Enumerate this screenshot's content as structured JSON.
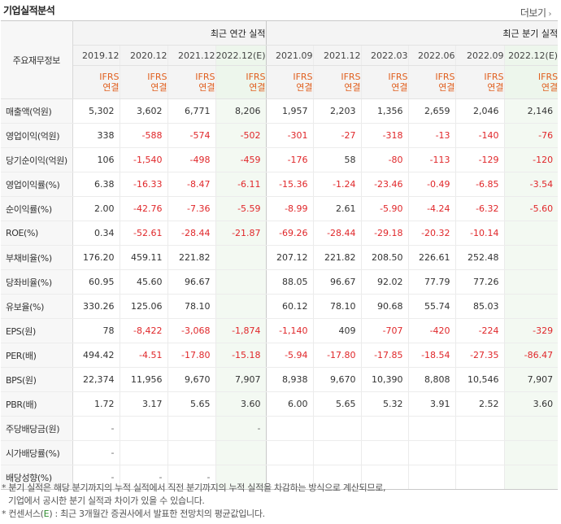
{
  "title": "기업실적분석",
  "more_label": "더보기",
  "header": {
    "label": "주요재무정보",
    "annual_group": "최근 연간 실적",
    "quarter_group": "최근 분기 실적",
    "annual_periods": [
      "2019.12",
      "2020.12",
      "2021.12",
      "2022.12(E)"
    ],
    "quarter_periods": [
      "2021.09",
      "2021.12",
      "2022.03",
      "2022.06",
      "2022.09",
      "2022.12(E)"
    ],
    "basis_top": "IFRS",
    "basis_bottom": "연결"
  },
  "rows": [
    {
      "label": "매출액(억원)",
      "values": [
        "5,302",
        "3,602",
        "6,771",
        "8,206",
        "1,957",
        "2,203",
        "1,356",
        "2,659",
        "2,046",
        "2,146"
      ]
    },
    {
      "label": "영업이익(억원)",
      "values": [
        "338",
        "-588",
        "-574",
        "-502",
        "-301",
        "-27",
        "-318",
        "-13",
        "-140",
        "-76"
      ]
    },
    {
      "label": "당기순이익(억원)",
      "values": [
        "106",
        "-1,540",
        "-498",
        "-459",
        "-176",
        "58",
        "-80",
        "-113",
        "-129",
        "-120"
      ]
    },
    {
      "label": "영업이익률(%)",
      "values": [
        "6.38",
        "-16.33",
        "-8.47",
        "-6.11",
        "-15.36",
        "-1.24",
        "-23.46",
        "-0.49",
        "-6.85",
        "-3.54"
      ]
    },
    {
      "label": "순이익률(%)",
      "values": [
        "2.00",
        "-42.76",
        "-7.36",
        "-5.59",
        "-8.99",
        "2.61",
        "-5.90",
        "-4.24",
        "-6.32",
        "-5.60"
      ]
    },
    {
      "label": "ROE(%)",
      "values": [
        "0.34",
        "-52.61",
        "-28.44",
        "-21.87",
        "-69.26",
        "-28.44",
        "-29.18",
        "-20.32",
        "-10.14",
        ""
      ]
    },
    {
      "label": "부채비율(%)",
      "values": [
        "176.20",
        "459.11",
        "221.82",
        "",
        "207.12",
        "221.82",
        "208.50",
        "226.61",
        "252.48",
        ""
      ]
    },
    {
      "label": "당좌비율(%)",
      "values": [
        "60.95",
        "45.60",
        "96.67",
        "",
        "88.05",
        "96.67",
        "92.02",
        "77.79",
        "77.26",
        ""
      ]
    },
    {
      "label": "유보율(%)",
      "values": [
        "330.26",
        "125.06",
        "78.10",
        "",
        "60.12",
        "78.10",
        "90.68",
        "55.74",
        "85.03",
        ""
      ]
    },
    {
      "label": "EPS(원)",
      "values": [
        "78",
        "-8,422",
        "-3,068",
        "-1,874",
        "-1,140",
        "409",
        "-707",
        "-420",
        "-224",
        "-329"
      ]
    },
    {
      "label": "PER(배)",
      "values": [
        "494.42",
        "-4.51",
        "-17.80",
        "-15.18",
        "-5.94",
        "-17.80",
        "-17.85",
        "-18.54",
        "-27.35",
        "-86.47"
      ]
    },
    {
      "label": "BPS(원)",
      "values": [
        "22,374",
        "11,956",
        "9,670",
        "7,907",
        "8,938",
        "9,670",
        "10,390",
        "8,808",
        "10,546",
        "7,907"
      ]
    },
    {
      "label": "PBR(배)",
      "values": [
        "1.72",
        "3.17",
        "5.65",
        "3.60",
        "6.00",
        "5.65",
        "5.32",
        "3.91",
        "2.52",
        "3.60"
      ]
    },
    {
      "label": "주당배당금(원)",
      "values": [
        "-",
        "",
        "",
        "-",
        "",
        "",
        "",
        "",
        "",
        ""
      ]
    },
    {
      "label": "시가배당률(%)",
      "values": [
        "-",
        "",
        "",
        "",
        "",
        "",
        "",
        "",
        "",
        ""
      ]
    },
    {
      "label": "배당성향(%)",
      "values": [
        "-",
        "-",
        "-",
        "",
        "",
        "",
        "",
        "",
        "",
        ""
      ]
    }
  ],
  "notes": {
    "line1": "* 분기 실적은 해당 분기까지의 누적 실적에서 직전 분기까지의 누적 실적을 차감하는 방식으로 계산되므로,",
    "line2": "기업에서 공시한 분기 실적과 차이가 있을 수 있습니다.",
    "line3_prefix": "* 컨센서스(",
    "line3_e": "E",
    "line3_suffix": ") : 최근 3개월간 증권사에서 발표한 전망치의 평균값입니다."
  },
  "colors": {
    "negative": "#e0272a",
    "basis": "#e06020",
    "estimate_bg": "#f4faf3",
    "estimate_mark": "#2e8b2e"
  }
}
